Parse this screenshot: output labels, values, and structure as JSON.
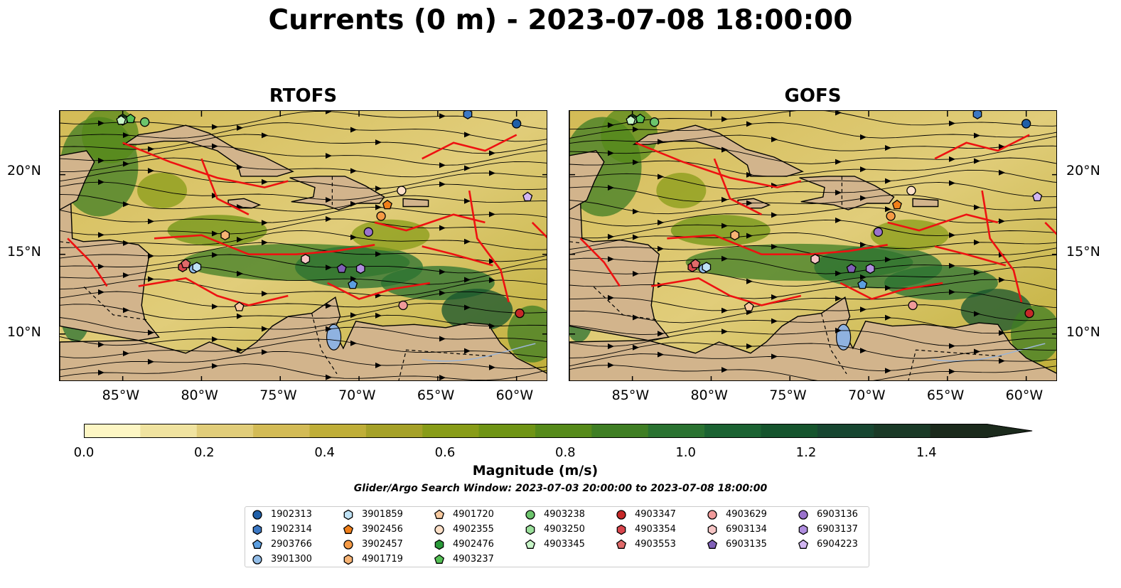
{
  "title": "Currents (0 m) - 2023-07-08 18:00:00",
  "chart_data": [
    {
      "type": "heatmap",
      "title": "RTOFS",
      "xlabel": "",
      "ylabel": "",
      "xlim": [
        -89,
        -58
      ],
      "ylim": [
        7,
        24
      ],
      "x_ticks": [
        "85°W",
        "80°W",
        "75°W",
        "70°W",
        "65°W",
        "60°W"
      ],
      "x_tick_values": [
        -85,
        -80,
        -75,
        -70,
        -65,
        -60
      ],
      "y_ticks": [
        "20°N",
        "15°N",
        "10°N"
      ],
      "y_tick_values": [
        20,
        15,
        10
      ],
      "grid": false
    },
    {
      "type": "heatmap",
      "title": "GOFS",
      "xlabel": "",
      "ylabel": "",
      "xlim": [
        -89,
        -58
      ],
      "ylim": [
        7,
        24
      ],
      "x_ticks": [
        "85°W",
        "80°W",
        "75°W",
        "70°W",
        "65°W",
        "60°W"
      ],
      "x_tick_values": [
        -85,
        -80,
        -75,
        -70,
        -65,
        -60
      ],
      "y_ticks": [
        "20°N",
        "15°N",
        "10°N"
      ],
      "y_tick_values": [
        20,
        15,
        10
      ],
      "grid": false
    }
  ],
  "colorbar": {
    "label": "Magnitude (m/s)",
    "range": [
      0.0,
      1.5
    ],
    "extend": "max",
    "ticks": [
      "0.0",
      "0.2",
      "0.4",
      "0.6",
      "0.8",
      "1.0",
      "1.2",
      "1.4"
    ],
    "tick_values": [
      0.0,
      0.2,
      0.4,
      0.6,
      0.8,
      1.0,
      1.2,
      1.4
    ],
    "colors": [
      "#fdf6c4",
      "#f0e3a0",
      "#e1cd7a",
      "#d3bb56",
      "#bfae38",
      "#a5a128",
      "#889c18",
      "#6f9415",
      "#568a1a",
      "#3f7e24",
      "#2a7231",
      "#1b6232",
      "#15542d",
      "#174631",
      "#1a3a27",
      "#1b2a1c"
    ]
  },
  "search_window": "Glider/Argo Search Window: 2023-07-03 20:00:00 to 2023-07-08 18:00:00",
  "legend": [
    {
      "id": "1902313",
      "color": "#1f5fa8",
      "marker": "circle",
      "lon": -60.0,
      "lat": 23.2
    },
    {
      "id": "1902314",
      "color": "#3c78c4",
      "marker": "hexagon",
      "lon": -63.1,
      "lat": 23.8
    },
    {
      "id": "2903766",
      "color": "#5b9ee0",
      "marker": "pentagon",
      "lon": -70.4,
      "lat": 13.1
    },
    {
      "id": "3901300",
      "color": "#92bde8",
      "marker": "circle",
      "lon": -80.5,
      "lat": 14.1
    },
    {
      "id": "3901859",
      "color": "#bfe2f5",
      "marker": "hexagon",
      "lon": -80.3,
      "lat": 14.2
    },
    {
      "id": "3902456",
      "color": "#f07f1a",
      "marker": "pentagon",
      "lon": -68.2,
      "lat": 18.1
    },
    {
      "id": "3902457",
      "color": "#f59a45",
      "marker": "circle",
      "lon": -68.6,
      "lat": 17.4
    },
    {
      "id": "4901719",
      "color": "#f7b374",
      "marker": "hexagon",
      "lon": -78.5,
      "lat": 16.2
    },
    {
      "id": "4901720",
      "color": "#f8caa0",
      "marker": "pentagon",
      "lon": -77.6,
      "lat": 11.7
    },
    {
      "id": "4902355",
      "color": "#fde0c8",
      "marker": "circle",
      "lon": -67.3,
      "lat": 19.0
    },
    {
      "id": "4902476",
      "color": "#2a9a3a",
      "marker": "hexagon",
      "lon": -85.0,
      "lat": 23.5
    },
    {
      "id": "4903237",
      "color": "#55c055",
      "marker": "pentagon",
      "lon": -84.5,
      "lat": 23.5
    },
    {
      "id": "4903238",
      "color": "#6cc46c",
      "marker": "circle",
      "lon": -83.6,
      "lat": 23.3
    },
    {
      "id": "4903250",
      "color": "#9be09b",
      "marker": "hexagon",
      "lon": -85.0,
      "lat": 23.4
    },
    {
      "id": "4903345",
      "color": "#c8f5c8",
      "marker": "pentagon",
      "lon": -85.1,
      "lat": 23.4
    },
    {
      "id": "4903347",
      "color": "#c62828",
      "marker": "circle",
      "lon": -59.8,
      "lat": 11.3
    },
    {
      "id": "4903354",
      "color": "#d9454d",
      "marker": "hexagon",
      "lon": -81.2,
      "lat": 14.2
    },
    {
      "id": "4903553",
      "color": "#e06a6a",
      "marker": "pentagon",
      "lon": -81.0,
      "lat": 14.4
    },
    {
      "id": "4903629",
      "color": "#f09a9a",
      "marker": "circle",
      "lon": -67.2,
      "lat": 11.8
    },
    {
      "id": "6903134",
      "color": "#f7c6c6",
      "marker": "hexagon",
      "lon": -73.4,
      "lat": 14.7
    },
    {
      "id": "6903135",
      "color": "#8060b8",
      "marker": "pentagon",
      "lon": -71.1,
      "lat": 14.1
    },
    {
      "id": "6903136",
      "color": "#9a72cc",
      "marker": "circle",
      "lon": -69.4,
      "lat": 16.4
    },
    {
      "id": "6903137",
      "color": "#b08ee0",
      "marker": "hexagon",
      "lon": -69.9,
      "lat": 14.1
    },
    {
      "id": "6904223",
      "color": "#d2b6f2",
      "marker": "pentagon",
      "lon": -59.3,
      "lat": 18.6
    }
  ]
}
